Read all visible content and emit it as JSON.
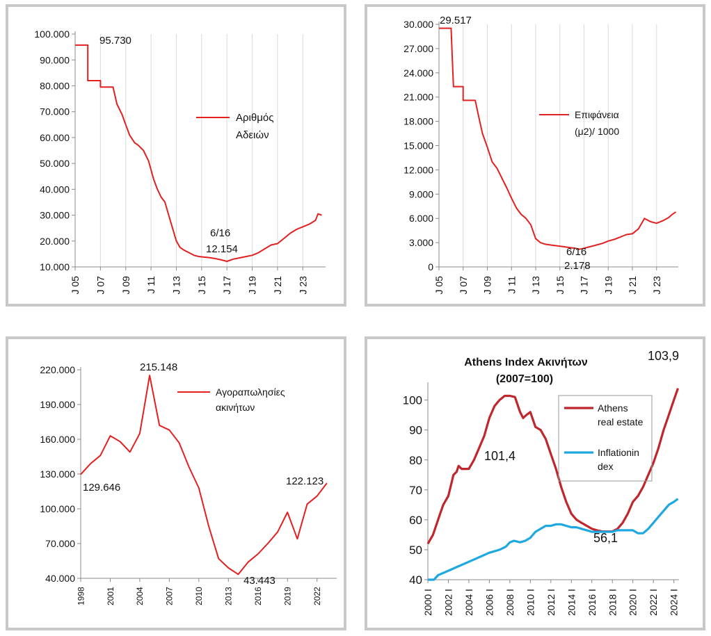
{
  "chart_data": [
    {
      "type": "line",
      "id": "permits",
      "title": "",
      "xlabel": "",
      "ylabel": "",
      "x_range": [
        2005,
        2024.8
      ],
      "ylim": [
        10000,
        100000
      ],
      "y_ticks": [
        10000,
        20000,
        30000,
        40000,
        50000,
        60000,
        70000,
        80000,
        90000,
        100000
      ],
      "y_tick_labels": [
        "10.000",
        "20.000",
        "30.000",
        "40.000",
        "50.000",
        "60.000",
        "70.000",
        "80.000",
        "90.000",
        "100.000"
      ],
      "x_ticks": [
        2005,
        2007,
        2009,
        2011,
        2013,
        2015,
        2017,
        2019,
        2021,
        2023
      ],
      "x_tick_labels": [
        "J 05",
        "J 07",
        "J 09",
        "J 11",
        "J 13",
        "J 15",
        "J 17",
        "J 19",
        "J 21",
        "J 23"
      ],
      "grid": "vertical",
      "legend_position": "center-right",
      "series": [
        {
          "name": "Αριθμός Αδειών",
          "color": "#e31f1f",
          "x": [
            2005.0,
            2006.0,
            2006.0,
            2007.0,
            2007.0,
            2008.0,
            2008.3,
            2008.7,
            2009.0,
            2009.3,
            2009.7,
            2010.0,
            2010.4,
            2010.8,
            2011.2,
            2011.5,
            2011.8,
            2012.1,
            2012.4,
            2012.7,
            2013.0,
            2013.3,
            2013.6,
            2014.0,
            2014.4,
            2014.8,
            2015.2,
            2015.6,
            2016.0,
            2016.5,
            2017.0,
            2017.5,
            2018.0,
            2018.5,
            2019.0,
            2019.5,
            2020.0,
            2020.5,
            2021.0,
            2021.5,
            2022.0,
            2022.5,
            2023.0,
            2023.5,
            2024.0,
            2024.2,
            2024.5
          ],
          "y": [
            95730,
            95730,
            82000,
            82000,
            79500,
            79500,
            73000,
            69000,
            65000,
            61000,
            58000,
            57000,
            55000,
            51000,
            44000,
            40000,
            37000,
            35000,
            30000,
            25000,
            20000,
            17500,
            16500,
            15500,
            14500,
            14000,
            13800,
            13600,
            13300,
            12800,
            12154,
            13000,
            13500,
            14000,
            14500,
            15500,
            17000,
            18500,
            19000,
            21000,
            23000,
            24500,
            25500,
            26500,
            28000,
            30500,
            30000
          ]
        }
      ],
      "annotations": [
        "95.730",
        "6/16",
        "12.154"
      ]
    },
    {
      "type": "line",
      "id": "area",
      "title": "",
      "xlabel": "",
      "ylabel": "",
      "x_range": [
        2005,
        2024.8
      ],
      "ylim": [
        0,
        30000
      ],
      "y_ticks": [
        0,
        3000,
        6000,
        9000,
        12000,
        15000,
        18000,
        21000,
        24000,
        27000,
        30000
      ],
      "y_tick_labels": [
        "0",
        "3.000",
        "6.000",
        "9.000",
        "12.000",
        "15.000",
        "18.000",
        "21.000",
        "24.000",
        "27.000",
        "30.000"
      ],
      "x_ticks": [
        2005,
        2007,
        2009,
        2011,
        2013,
        2015,
        2017,
        2019,
        2021,
        2023
      ],
      "x_tick_labels": [
        "J 05",
        "J 07",
        "J 09",
        "J 11",
        "J 13",
        "J 15",
        "J 17",
        "J 19",
        "J 21",
        "J 23"
      ],
      "grid": "vertical",
      "legend_position": "top-right",
      "series": [
        {
          "name": "Επιφάνεια (μ2)/ 1000",
          "color": "#e31f1f",
          "x": [
            2005.0,
            2006.0,
            2006.0,
            2006.2,
            2006.2,
            2007.0,
            2007.0,
            2008.0,
            2008.3,
            2008.6,
            2009.0,
            2009.4,
            2009.8,
            2010.2,
            2010.6,
            2011.0,
            2011.4,
            2011.8,
            2012.2,
            2012.6,
            2013.0,
            2013.4,
            2013.8,
            2014.3,
            2014.8,
            2015.3,
            2015.8,
            2016.3,
            2016.6,
            2017.0,
            2017.5,
            2018.0,
            2018.5,
            2019.0,
            2019.5,
            2020.0,
            2020.5,
            2021.0,
            2021.5,
            2022.0,
            2022.5,
            2023.0,
            2023.5,
            2024.0,
            2024.3,
            2024.6
          ],
          "y": [
            29517,
            29517,
            29517,
            22300,
            22300,
            22300,
            20600,
            20600,
            18500,
            16500,
            14800,
            13000,
            12200,
            11000,
            9800,
            8500,
            7300,
            6500,
            6000,
            5200,
            3500,
            3000,
            2800,
            2700,
            2600,
            2500,
            2400,
            2300,
            2178,
            2300,
            2500,
            2700,
            2900,
            3200,
            3400,
            3700,
            4000,
            4100,
            4700,
            6000,
            5600,
            5400,
            5700,
            6100,
            6500,
            6800
          ]
        }
      ],
      "annotations": [
        "29.517",
        "6/16",
        "2.178"
      ]
    },
    {
      "type": "line",
      "id": "sales",
      "title": "",
      "xlabel": "",
      "ylabel": "",
      "x_range": [
        1998,
        2024
      ],
      "ylim": [
        40000,
        220000
      ],
      "y_ticks": [
        40000,
        70000,
        100000,
        130000,
        160000,
        190000,
        220000
      ],
      "y_tick_labels": [
        "40.000",
        "70.000",
        "100.000",
        "130.000",
        "160.000",
        "190.000",
        "220.000"
      ],
      "x_ticks": [
        1998,
        2001,
        2004,
        2007,
        2010,
        2013,
        2016,
        2019,
        2022
      ],
      "x_tick_labels": [
        "1998",
        "2001",
        "2004",
        "2007",
        "2010",
        "2013",
        "2016",
        "2019",
        "2022"
      ],
      "grid": "none",
      "legend_position": "top-right",
      "series": [
        {
          "name": "Αγοραπωλησίες ακινήτων",
          "color": "#e31f1f",
          "x": [
            1998,
            1999,
            2000,
            2001,
            2002,
            2003,
            2004,
            2005,
            2006,
            2007,
            2008,
            2009,
            2010,
            2011,
            2012,
            2013,
            2014,
            2015,
            2016,
            2017,
            2018,
            2019,
            2020,
            2021,
            2022,
            2023
          ],
          "y": [
            129646,
            139000,
            146000,
            163000,
            158000,
            149000,
            165000,
            215148,
            172000,
            168000,
            157000,
            136000,
            118000,
            85000,
            57000,
            49000,
            43443,
            54000,
            61000,
            70000,
            80000,
            97000,
            74000,
            104000,
            111000,
            122123
          ]
        }
      ],
      "annotations": [
        "215.148",
        "129.646",
        "43.443",
        "122.123"
      ]
    },
    {
      "type": "line",
      "id": "index",
      "title": "Athens  Index Ακινήτων",
      "subtitle": "(2007=100)",
      "xlabel": "",
      "ylabel": "",
      "x_range": [
        2000,
        2024.5
      ],
      "ylim": [
        40,
        105
      ],
      "y_ticks": [
        40,
        50,
        60,
        70,
        80,
        90,
        100
      ],
      "y_tick_labels": [
        "40",
        "50",
        "60",
        "70",
        "80",
        "90",
        "100"
      ],
      "x_ticks": [
        2000,
        2002,
        2004,
        2006,
        2008,
        2010,
        2012,
        2014,
        2016,
        2018,
        2020,
        2022,
        2024
      ],
      "x_tick_labels": [
        "2000 I",
        "2002 I",
        "2004 I",
        "2006 I",
        "2008 I",
        "2010 I",
        "2012 I",
        "2014 I",
        "2016 I",
        "2018 I",
        "2020 I",
        "2022 I",
        "2024 I"
      ],
      "grid": "none",
      "legend_position": "top-center",
      "series": [
        {
          "name": "Athens real estate",
          "color": "#c0262c",
          "x": [
            2000.0,
            2000.5,
            2001.0,
            2001.5,
            2002.0,
            2002.5,
            2002.8,
            2003.0,
            2003.3,
            2003.6,
            2004.0,
            2004.5,
            2005.0,
            2005.5,
            2006.0,
            2006.5,
            2007.0,
            2007.5,
            2008.0,
            2008.5,
            2009.0,
            2009.3,
            2009.6,
            2010.0,
            2010.5,
            2011.0,
            2011.5,
            2012.0,
            2012.5,
            2013.0,
            2013.5,
            2014.0,
            2014.5,
            2015.0,
            2015.5,
            2016.0,
            2016.5,
            2017.0,
            2017.5,
            2018.0,
            2018.5,
            2019.0,
            2019.5,
            2020.0,
            2020.5,
            2021.0,
            2021.5,
            2022.0,
            2022.5,
            2023.0,
            2023.5,
            2024.0,
            2024.4
          ],
          "y": [
            52,
            55,
            60,
            65,
            68,
            75,
            76,
            78,
            77,
            77,
            77,
            80,
            84,
            88,
            94,
            98,
            100,
            101.4,
            101.4,
            101,
            96,
            94,
            95,
            96,
            91,
            90,
            87,
            82,
            77,
            71,
            66,
            62,
            60,
            59,
            58,
            57,
            56.5,
            56.1,
            56.1,
            56.1,
            57,
            59,
            62,
            66,
            68,
            71,
            75,
            79,
            84,
            90,
            95,
            100,
            103.9
          ]
        },
        {
          "name": "Inflationin dex",
          "color": "#1ea8e0",
          "x": [
            2000.0,
            2000.6,
            2001.0,
            2002.0,
            2003.0,
            2004.0,
            2005.0,
            2006.0,
            2007.0,
            2007.6,
            2008.0,
            2008.4,
            2009.0,
            2009.5,
            2010.0,
            2010.5,
            2011.0,
            2011.5,
            2012.0,
            2012.5,
            2013.0,
            2013.5,
            2014.0,
            2014.5,
            2015.0,
            2015.5,
            2016.0,
            2016.5,
            2017.0,
            2017.5,
            2018.0,
            2018.5,
            2019.0,
            2019.5,
            2020.0,
            2020.5,
            2021.0,
            2021.5,
            2022.0,
            2022.5,
            2023.0,
            2023.5,
            2024.0,
            2024.4
          ],
          "y": [
            40,
            40,
            41.5,
            43,
            44.5,
            46,
            47.5,
            49,
            50,
            51,
            52.5,
            53,
            52.5,
            53,
            54,
            56,
            57,
            58,
            58,
            58.5,
            58.5,
            58,
            57.5,
            57.5,
            57,
            56.5,
            56,
            56,
            56,
            56,
            56,
            56.5,
            56.5,
            56.5,
            56.5,
            55.5,
            55.5,
            57,
            59,
            61,
            63,
            65,
            66,
            67
          ]
        }
      ],
      "annotations": [
        "101,4",
        "56,1",
        "103,9"
      ]
    }
  ]
}
